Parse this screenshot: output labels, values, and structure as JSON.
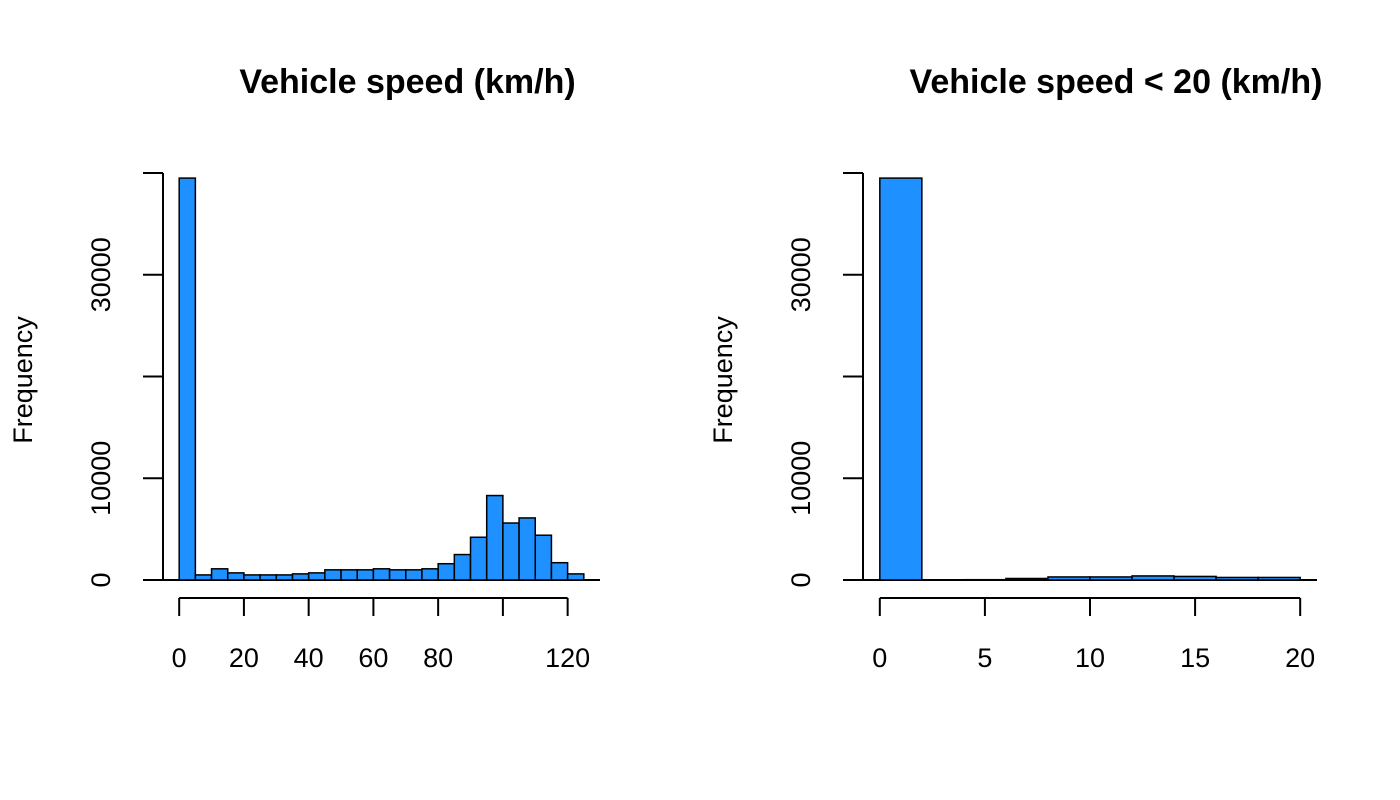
{
  "chart_data": [
    {
      "type": "histogram",
      "title": "Vehicle speed (km/h)",
      "ylabel": "Frequency",
      "color": "#1e90ff",
      "bins": [
        0,
        5,
        10,
        15,
        20,
        25,
        30,
        35,
        40,
        45,
        50,
        55,
        60,
        65,
        70,
        75,
        80,
        85,
        90,
        95,
        100,
        105,
        110,
        115,
        120,
        125
      ],
      "counts": [
        39500,
        500,
        1100,
        700,
        500,
        500,
        500,
        600,
        700,
        1000,
        1000,
        1000,
        1100,
        1000,
        1000,
        1100,
        1600,
        2500,
        4200,
        8300,
        5600,
        6100,
        4400,
        1700,
        600
      ],
      "xlim": [
        0,
        125
      ],
      "xticks": [
        0,
        20,
        40,
        60,
        80,
        100,
        120
      ],
      "xtick_labels": [
        0,
        20,
        40,
        60,
        80,
        120
      ],
      "ylim": [
        0,
        40000
      ],
      "yticks": [
        0,
        10000,
        20000,
        30000,
        40000
      ],
      "ytick_labels": [
        0,
        10000,
        30000
      ]
    },
    {
      "type": "histogram",
      "title": "Vehicle speed < 20 (km/h)",
      "ylabel": "Frequency",
      "color": "#1e90ff",
      "bins": [
        0,
        2,
        4,
        6,
        8,
        10,
        12,
        14,
        16,
        18,
        20
      ],
      "counts": [
        39500,
        20,
        30,
        150,
        300,
        300,
        400,
        350,
        250,
        250
      ],
      "xlim": [
        0,
        20
      ],
      "xticks": [
        0,
        5,
        10,
        15,
        20
      ],
      "xtick_labels": [
        0,
        5,
        10,
        15,
        20
      ],
      "ylim": [
        0,
        40000
      ],
      "yticks": [
        0,
        10000,
        20000,
        30000,
        40000
      ],
      "ytick_labels": [
        0,
        10000,
        30000
      ]
    }
  ]
}
